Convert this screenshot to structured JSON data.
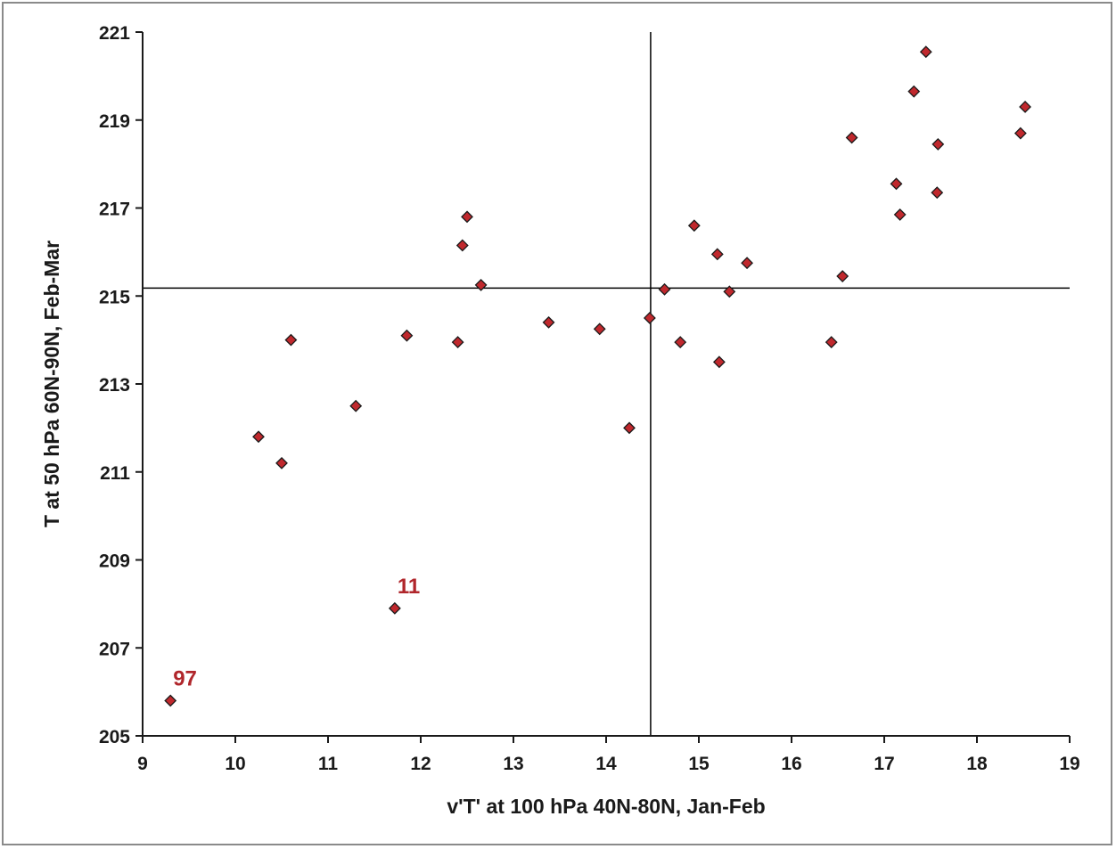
{
  "chart_data": {
    "type": "scatter",
    "title": "",
    "xlabel": "v'T' at 100 hPa 40N-80N, Jan-Feb",
    "ylabel": "T at 50 hPa 60N-90N, Feb-Mar",
    "xlim": [
      9,
      19
    ],
    "ylim": [
      205,
      221
    ],
    "xticks": [
      9,
      10,
      11,
      12,
      13,
      14,
      15,
      16,
      17,
      18,
      19
    ],
    "yticks": [
      205,
      207,
      209,
      211,
      213,
      215,
      217,
      219,
      221
    ],
    "grid": false,
    "marker": "diamond",
    "marker_color": "#c0282d",
    "marker_edge": "#1a1a1a",
    "annotation_color": "#b0262b",
    "reference_lines": {
      "x": 14.48,
      "y": 215.18
    },
    "points": [
      {
        "x": 9.3,
        "y": 205.8
      },
      {
        "x": 10.25,
        "y": 211.8
      },
      {
        "x": 10.5,
        "y": 211.2
      },
      {
        "x": 10.6,
        "y": 214.0
      },
      {
        "x": 11.3,
        "y": 212.5
      },
      {
        "x": 11.72,
        "y": 207.9
      },
      {
        "x": 11.85,
        "y": 214.1
      },
      {
        "x": 12.4,
        "y": 213.95
      },
      {
        "x": 12.45,
        "y": 216.15
      },
      {
        "x": 12.5,
        "y": 216.8
      },
      {
        "x": 12.65,
        "y": 215.25
      },
      {
        "x": 13.38,
        "y": 214.4
      },
      {
        "x": 13.93,
        "y": 214.25
      },
      {
        "x": 14.25,
        "y": 212.0
      },
      {
        "x": 14.47,
        "y": 214.5
      },
      {
        "x": 14.63,
        "y": 215.15
      },
      {
        "x": 14.8,
        "y": 213.95
      },
      {
        "x": 14.95,
        "y": 216.6
      },
      {
        "x": 15.2,
        "y": 215.95
      },
      {
        "x": 15.22,
        "y": 213.5
      },
      {
        "x": 15.33,
        "y": 215.1
      },
      {
        "x": 15.52,
        "y": 215.75
      },
      {
        "x": 16.43,
        "y": 213.95
      },
      {
        "x": 16.55,
        "y": 215.45
      },
      {
        "x": 16.65,
        "y": 218.6
      },
      {
        "x": 17.13,
        "y": 217.55
      },
      {
        "x": 17.17,
        "y": 216.85
      },
      {
        "x": 17.32,
        "y": 219.65
      },
      {
        "x": 17.45,
        "y": 220.55
      },
      {
        "x": 17.57,
        "y": 217.35
      },
      {
        "x": 17.58,
        "y": 218.45
      },
      {
        "x": 18.47,
        "y": 218.7
      },
      {
        "x": 18.52,
        "y": 219.3
      }
    ],
    "annotations": [
      {
        "text": "97",
        "x": 9.3,
        "y": 205.8
      },
      {
        "text": "11",
        "x": 11.72,
        "y": 207.9
      }
    ]
  }
}
